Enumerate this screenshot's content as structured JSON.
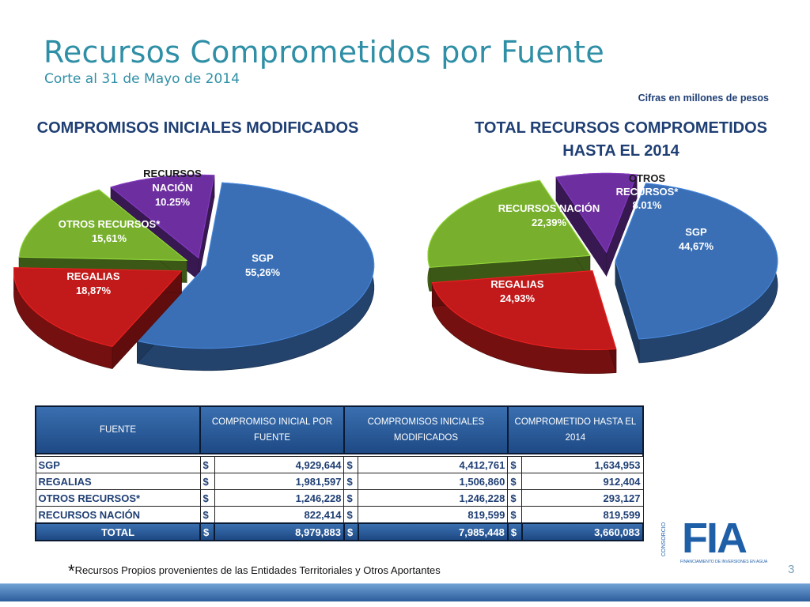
{
  "title": "Recursos Comprometidos por Fuente",
  "subtitle": "Corte al 31 de Mayo de 2014",
  "units_note": "Cifras en millones de pesos",
  "colors": {
    "sgp": "#3a6fb5",
    "regalias": "#c21a1a",
    "otros": "#78b02e",
    "nacion": "#6d2fa0",
    "title": "#2f8fa6",
    "navy": "#1f3f74"
  },
  "chart_data": [
    {
      "type": "pie",
      "title": "COMPROMISOS INICIALES MODIFICADOS",
      "slices": [
        {
          "label": "SGP",
          "value": 55.26,
          "display": "55,26%",
          "color": "#3a6fb5"
        },
        {
          "label": "REGALIAS",
          "value": 18.87,
          "display": "18,87%",
          "color": "#c21a1a"
        },
        {
          "label": "OTROS RECURSOS*",
          "value": 15.61,
          "display": "15,61%",
          "color": "#78b02e"
        },
        {
          "label": "RECURSOS NACIÓN",
          "value": 10.25,
          "display": "10.25%",
          "color": "#6d2fa0"
        }
      ]
    },
    {
      "type": "pie",
      "title_lines": [
        "TOTAL RECURSOS COMPROMETIDOS",
        "HASTA EL 2014"
      ],
      "slices": [
        {
          "label": "SGP",
          "value": 44.67,
          "display": "44,67%",
          "color": "#3a6fb5"
        },
        {
          "label": "REGALIAS",
          "value": 24.93,
          "display": "24,93%",
          "color": "#c21a1a"
        },
        {
          "label": "RECURSOS NACIÓN",
          "value": 22.39,
          "display": "22,39%",
          "color": "#78b02e"
        },
        {
          "label": "OTROS RECURSOS*",
          "value": 8.01,
          "display": "8.01%",
          "color": "#6d2fa0"
        }
      ]
    },
    {
      "type": "table",
      "headers": {
        "fuente": "FUENTE",
        "col1": "COMPROMISO INICIAL POR FUENTE",
        "col2": "COMPROMISOS INICIALES MODIFICADOS",
        "col3": "COMPROMETIDO HASTA EL 2014"
      },
      "currency": "$",
      "rows": [
        {
          "name": "SGP",
          "v1": "4,929,644",
          "v2": "4,412,761",
          "v3": "1,634,953"
        },
        {
          "name": "REGALIAS",
          "v1": "1,981,597",
          "v2": "1,506,860",
          "v3": "912,404"
        },
        {
          "name": "OTROS RECURSOS*",
          "v1": "1,246,228",
          "v2": "1,246,228",
          "v3": "293,127"
        },
        {
          "name": "RECURSOS NACIÓN",
          "v1": "822,414",
          "v2": "819,599",
          "v3": "819,599"
        }
      ],
      "total": {
        "name": "TOTAL",
        "v1": "8,979,883",
        "v2": "7,985,448",
        "v3": "3,660,083"
      }
    }
  ],
  "left_labels": {
    "sgp": [
      "SGP",
      "55,26%"
    ],
    "regalias": [
      "REGALIAS",
      "18,87%"
    ],
    "otros": [
      "OTROS RECURSOS*",
      "15,61%"
    ],
    "nacion": [
      "RECURSOS",
      "NACIÓN",
      "10.25%"
    ]
  },
  "right_labels": {
    "sgp": [
      "SGP",
      "44,67%"
    ],
    "regalias": [
      "REGALIAS",
      "24,93%"
    ],
    "nacion": [
      "RECURSOS NACIÓN",
      "22,39%"
    ],
    "otros": [
      "OTROS",
      "RECURSOS*",
      "8.01%"
    ]
  },
  "footnote_star": "*",
  "footnote": "Recursos Propios provenientes de las Entidades Territoriales y Otros Aportantes",
  "page_number": "3",
  "logo": {
    "word": "FIA",
    "side": "CONSORCIO",
    "tag": "FINANCIAMIENTO DE INVERSIONES EN AGUA"
  }
}
